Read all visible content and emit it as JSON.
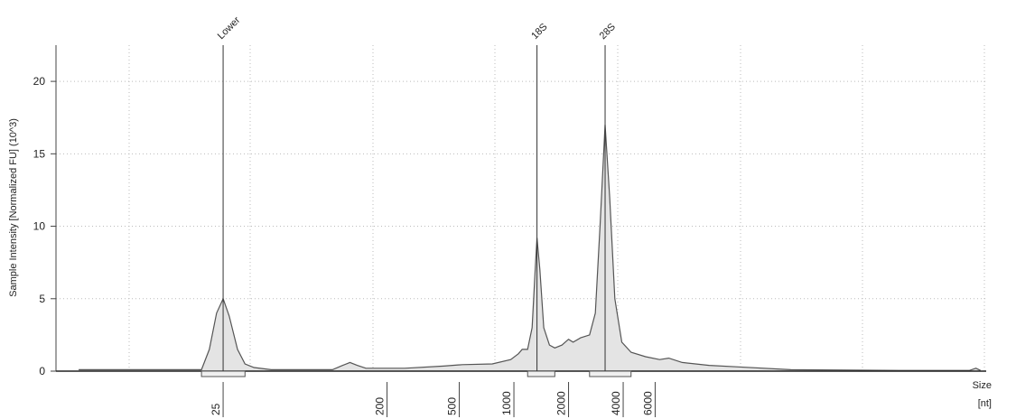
{
  "chart_data": {
    "type": "area",
    "ylabel": "Sample Intensity [Normalized FU] (10^3)",
    "xlabel": [
      "Size",
      "[nt]"
    ],
    "xscale": "log",
    "xlim": [
      3,
      400000
    ],
    "ylim": [
      0,
      22.5
    ],
    "xticks": [
      25,
      200,
      500,
      1000,
      2000,
      4000,
      6000
    ],
    "yticks": [
      0,
      5,
      10,
      15,
      20
    ],
    "grid": true,
    "color": "#e4e4e4",
    "line_color": "#555555",
    "x": [
      4,
      14,
      19,
      21,
      23,
      25,
      27,
      30,
      33,
      37,
      46,
      100,
      114,
      125,
      137,
      153,
      250,
      410,
      520,
      760,
      960,
      1060,
      1110,
      1190,
      1260,
      1310,
      1340,
      1390,
      1460,
      1570,
      1680,
      1840,
      2000,
      2120,
      2330,
      2610,
      2810,
      2980,
      3180,
      3370,
      3600,
      3930,
      4420,
      5310,
      6350,
      7130,
      8460,
      11900,
      16800,
      33500,
      132000,
      324000,
      351000,
      372000
    ],
    "values": [
      0.1,
      0.1,
      0.1,
      1.5,
      4.0,
      5.0,
      3.8,
      1.5,
      0.5,
      0.25,
      0.1,
      0.1,
      0.4,
      0.6,
      0.4,
      0.2,
      0.2,
      0.35,
      0.45,
      0.5,
      0.8,
      1.2,
      1.5,
      1.5,
      3,
      7,
      9.2,
      7,
      3,
      1.8,
      1.6,
      1.8,
      2.2,
      2.0,
      2.3,
      2.5,
      4,
      10,
      17,
      12,
      5,
      2,
      1.3,
      1.0,
      0.8,
      0.9,
      0.6,
      0.4,
      0.3,
      0.1,
      0.05,
      0.05,
      0.2,
      0.05
    ],
    "markers": [
      {
        "label": "Lower",
        "x": 25
      },
      {
        "label": "18S",
        "x": 1340
      },
      {
        "label": "28S",
        "x": 3180
      }
    ],
    "regions": [
      [
        19,
        33
      ],
      [
        1190,
        1680
      ],
      [
        2610,
        4420
      ]
    ]
  }
}
